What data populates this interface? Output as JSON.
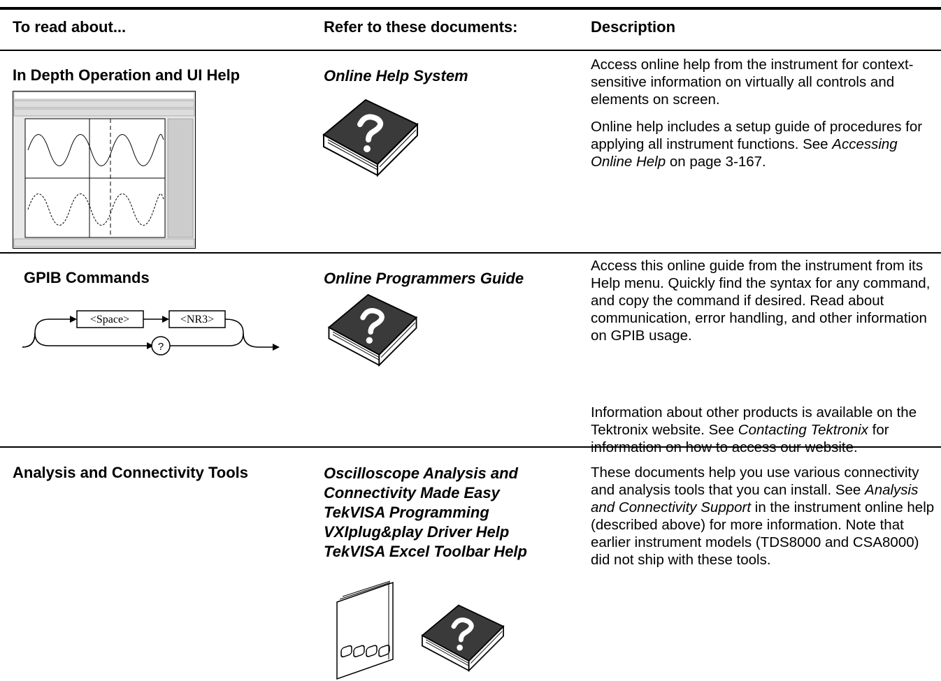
{
  "table": {
    "headers": [
      "To read about...",
      "Refer to these documents:",
      "Description"
    ],
    "rows": [
      {
        "topic": "In Depth Operation and UI Help",
        "documents": [
          "Online Help System"
        ],
        "description": [
          [
            "Access online help from the instrument for context-sensitive information on virtually all controls and elements on screen."
          ],
          [
            "Online help includes a setup guide of procedures for applying all instrument functions. See ",
            "Accessing Online Help",
            " on page 3-167."
          ]
        ]
      },
      {
        "topic": "GPIB Commands",
        "diagram": [
          "<Space>",
          "<NR3>",
          "?"
        ],
        "documents": [
          "Online Programmers Guide"
        ],
        "description": [
          [
            "Access this online guide from the instrument from its Help menu. Quickly find the syntax for any command, and copy the command if desired. Read about communication, error handling, and other information on GPIB usage."
          ],
          [
            "Information about other products is available on the Tektronix website. See ",
            "Contacting Tektronix",
            " for information on how to access our website."
          ]
        ]
      },
      {
        "topic": "Analysis and Connectivity Tools",
        "documents": [
          "Oscilloscope Analysis and Connectivity Made Easy",
          "TekVISA Programming",
          "VXIplug&play Driver Help",
          "TekVISA Excel Toolbar Help"
        ],
        "description": [
          [
            "These documents help you use various connectivity and analysis tools that you can install. See ",
            "Analysis and Connectivity Support",
            " in the instrument online help (described above) for more information. Note that earlier instrument models (TDS8000 and CSA8000) did not ship with these tools."
          ]
        ]
      }
    ]
  }
}
